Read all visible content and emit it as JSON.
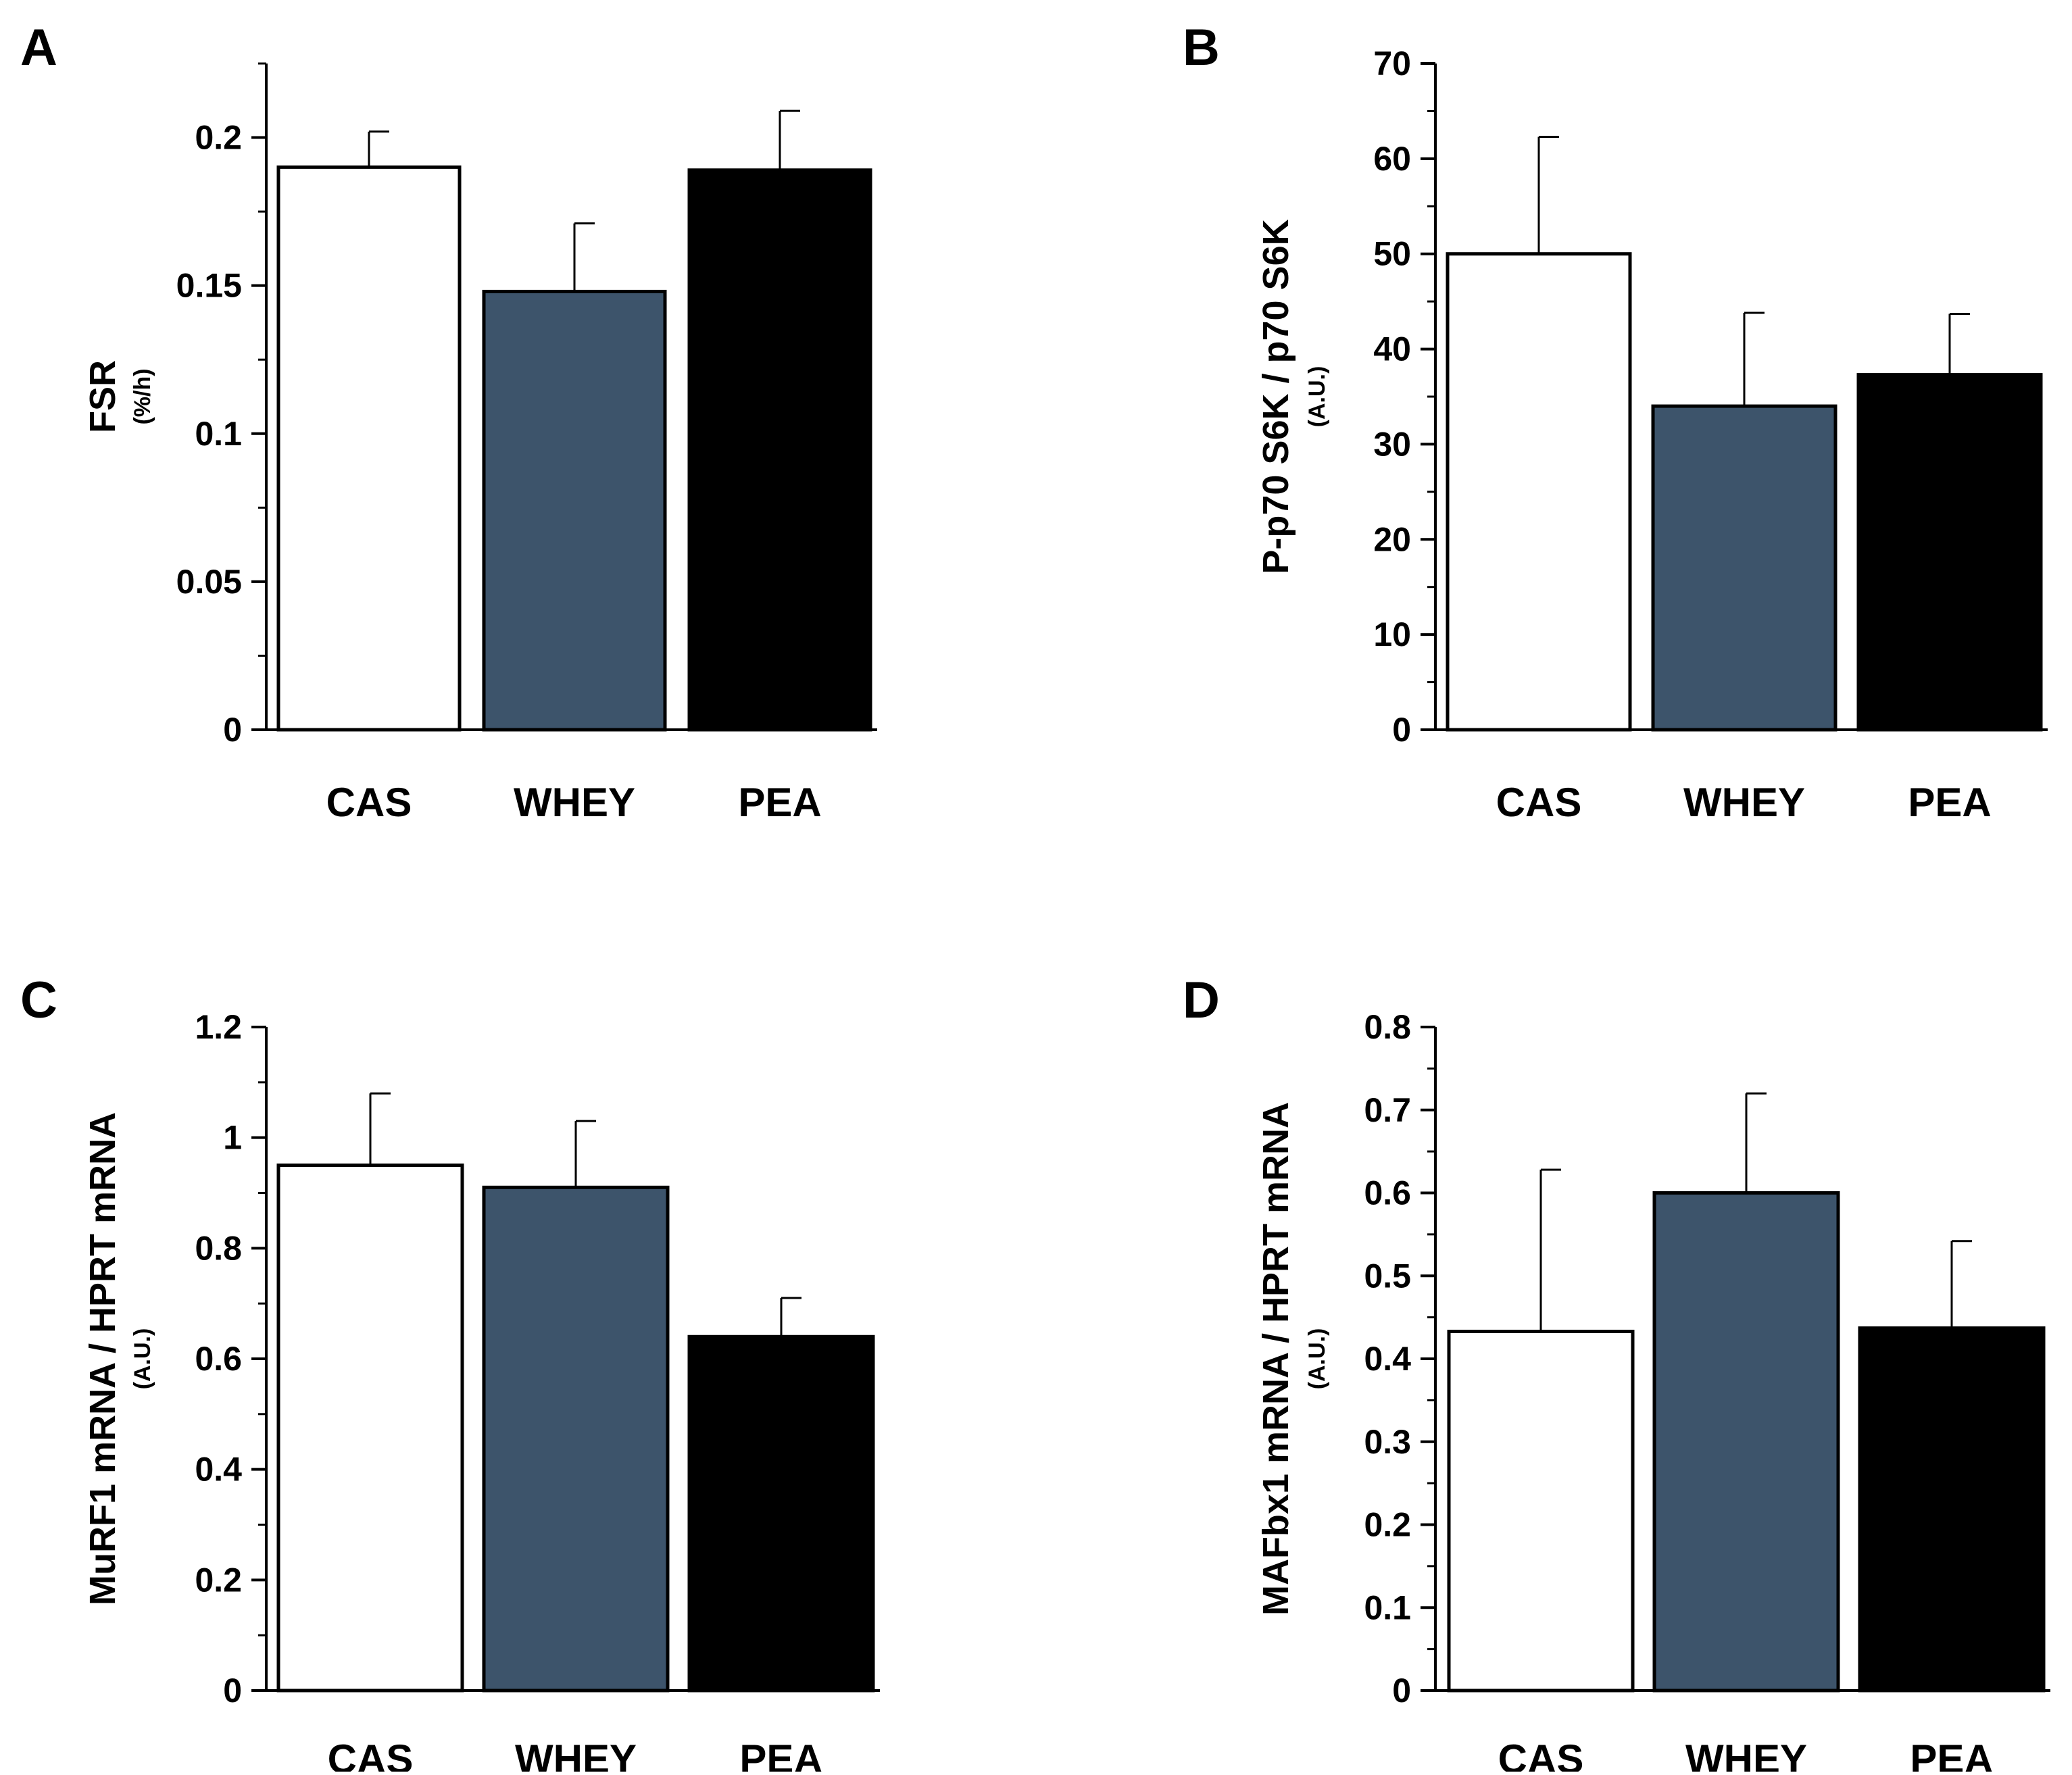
{
  "figure": {
    "colors": {
      "CAS": "#ffffff",
      "WHEY": "#3d546b",
      "PEA": "#000000",
      "axis": "#000000"
    }
  },
  "chart_data": [
    {
      "panel": "A",
      "type": "bar",
      "categories": [
        "CAS",
        "WHEY",
        "PEA"
      ],
      "values": [
        0.19,
        0.148,
        0.189
      ],
      "errors": [
        0.012,
        0.023,
        0.02
      ],
      "ylabel": "FSR",
      "yunit": "(%/h)",
      "ylim": [
        0,
        0.225
      ],
      "yticks": [
        0,
        0.05,
        0.1,
        0.15,
        0.2
      ],
      "ytick_labels": [
        "0",
        "0.05",
        "0.1",
        "0.15",
        "0.2"
      ],
      "minor_step": 0.025
    },
    {
      "panel": "B",
      "type": "bar",
      "categories": [
        "CAS",
        "WHEY",
        "PEA"
      ],
      "values": [
        50,
        34,
        37.3
      ],
      "errors": [
        12.3,
        9.8,
        6.4
      ],
      "ylabel": "P-p70 S6K / p70 S6K",
      "yunit": "(A.U.)",
      "ylim": [
        0,
        70
      ],
      "yticks": [
        0,
        10,
        20,
        30,
        40,
        50,
        60,
        70
      ],
      "ytick_labels": [
        "0",
        "10",
        "20",
        "30",
        "40",
        "50",
        "60",
        "70"
      ],
      "minor_step": 5
    },
    {
      "panel": "C",
      "type": "bar",
      "categories": [
        "CAS",
        "WHEY",
        "PEA"
      ],
      "values": [
        0.95,
        0.91,
        0.64
      ],
      "errors": [
        0.13,
        0.12,
        0.07
      ],
      "ylabel": "MuRF1 mRNA / HPRT mRNA",
      "yunit": "(A.U.)",
      "ylim": [
        0,
        1.2
      ],
      "yticks": [
        0,
        0.2,
        0.4,
        0.6,
        0.8,
        1,
        1.2
      ],
      "ytick_labels": [
        "0",
        "0.2",
        "0.4",
        "0.6",
        "0.8",
        "1",
        "1.2"
      ],
      "minor_step": 0.1
    },
    {
      "panel": "D",
      "type": "bar",
      "categories": [
        "CAS",
        "WHEY",
        "PEA"
      ],
      "values": [
        0.433,
        0.6,
        0.437
      ],
      "errors": [
        0.195,
        0.12,
        0.105
      ],
      "ylabel": "MAFbx1 mRNA / HPRT mRNA",
      "yunit": "(A.U.)",
      "ylim": [
        0,
        0.8
      ],
      "yticks": [
        0,
        0.1,
        0.2,
        0.3,
        0.4,
        0.5,
        0.6,
        0.7,
        0.8
      ],
      "ytick_labels": [
        "0",
        "0.1",
        "0.2",
        "0.3",
        "0.4",
        "0.5",
        "0.6",
        "0.7",
        "0.8"
      ],
      "minor_step": 0.05
    }
  ]
}
